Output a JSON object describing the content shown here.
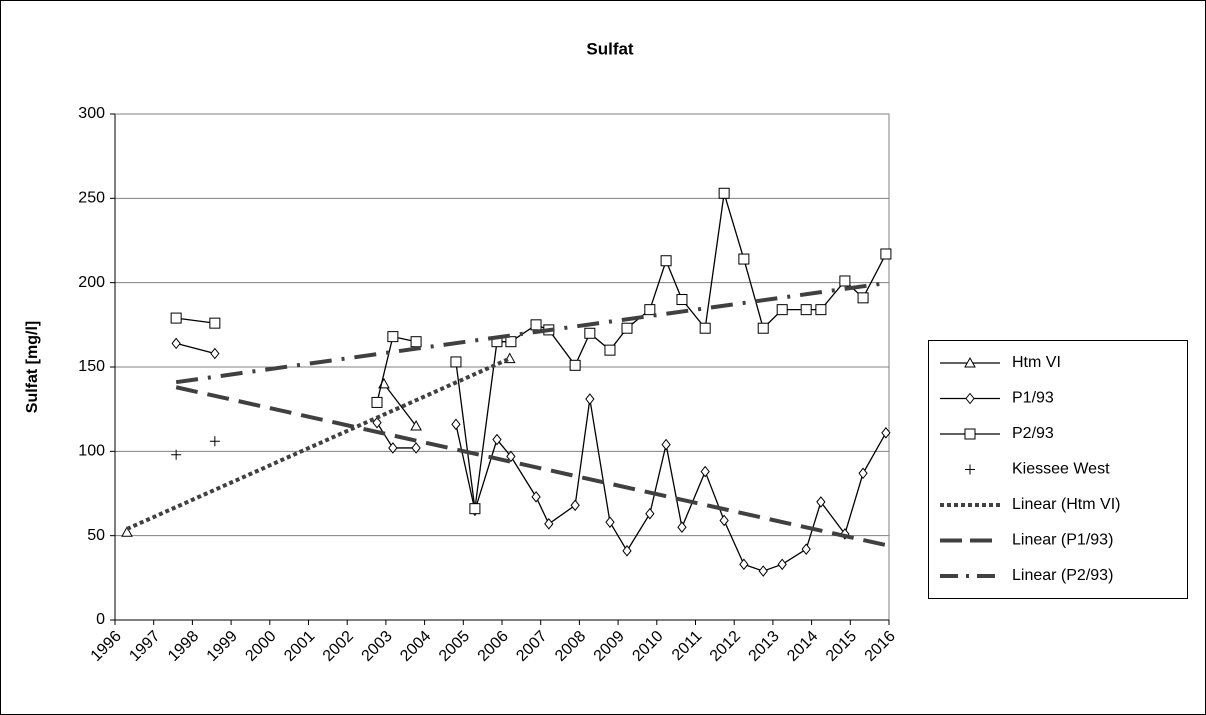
{
  "chart_data": {
    "type": "line",
    "title": "Sulfat",
    "y_label": "Sulfat [mg/l]",
    "xlim": [
      1996,
      2016
    ],
    "xticks": [
      1996,
      1997,
      1998,
      1999,
      2000,
      2001,
      2002,
      2003,
      2004,
      2005,
      2006,
      2007,
      2008,
      2009,
      2010,
      2011,
      2012,
      2013,
      2014,
      2015,
      2016
    ],
    "ylim": [
      0,
      300
    ],
    "yticks": [
      0,
      50,
      100,
      150,
      200,
      250,
      300
    ],
    "grid": true,
    "legend": "right",
    "series": [
      {
        "name": "Htm VI",
        "color": "#000000",
        "marker": "triangle",
        "line": true,
        "x": [
          1996.31,
          null,
          2002.95,
          2003.78,
          null,
          2006.2
        ],
        "values": [
          52,
          null,
          140,
          115,
          null,
          155
        ]
      },
      {
        "name": "P1/93",
        "color": "#000000",
        "marker": "diamond",
        "line": true,
        "x": [
          1997.58,
          1998.58,
          null,
          2002.77,
          2003.18,
          2003.78,
          null,
          2004.81,
          2005.3,
          2005.87,
          2006.23,
          2006.88,
          2007.21,
          2007.89,
          2008.27,
          2008.79,
          2009.23,
          2009.82,
          2010.24,
          2010.65,
          2011.25,
          2011.74,
          2012.25,
          2012.75,
          2013.24,
          2013.86,
          2014.24,
          2014.86,
          2015.33,
          2015.92
        ],
        "values": [
          164,
          158,
          null,
          117,
          102,
          102,
          null,
          116,
          65,
          107,
          97,
          73,
          57,
          68,
          131,
          58,
          41,
          63,
          104,
          55,
          88,
          59,
          33,
          29,
          33,
          42,
          70,
          51,
          87,
          111
        ]
      },
      {
        "name": "P2/93",
        "color": "#000000",
        "marker": "square",
        "line": true,
        "x": [
          1997.58,
          1998.58,
          null,
          2002.77,
          2003.18,
          2003.78,
          null,
          2004.81,
          2005.3,
          2005.87,
          2006.23,
          2006.88,
          2007.21,
          2007.89,
          2008.27,
          2008.79,
          2009.23,
          2009.82,
          2010.24,
          2010.65,
          2011.25,
          2011.74,
          2012.25,
          2012.75,
          2013.24,
          2013.86,
          2014.24,
          2014.86,
          2015.33,
          2015.92
        ],
        "values": [
          179,
          176,
          null,
          129,
          168,
          165,
          null,
          153,
          66,
          165,
          165,
          175,
          172,
          151,
          170,
          160,
          173,
          184,
          213,
          190,
          173,
          253,
          214,
          173,
          184,
          184,
          184,
          201,
          191,
          217
        ]
      },
      {
        "name": "Kiessee West",
        "color": "#000000",
        "marker": "plus",
        "line": false,
        "x": [
          1997.58,
          1998.58
        ],
        "values": [
          98,
          106
        ]
      },
      {
        "name": "Linear (Htm VI)",
        "color": "#404040",
        "dash": "dotted",
        "line": true,
        "x": [
          1996.31,
          2006.2
        ],
        "values": [
          54,
          155
        ]
      },
      {
        "name": "Linear (P1/93)",
        "color": "#404040",
        "dash": "dashed",
        "line": true,
        "x": [
          1997.58,
          2016
        ],
        "values": [
          138,
          44
        ]
      },
      {
        "name": "Linear (P2/93)",
        "color": "#404040",
        "dash": "dashdot",
        "line": true,
        "x": [
          1997.58,
          2016
        ],
        "values": [
          141,
          200
        ]
      }
    ]
  }
}
